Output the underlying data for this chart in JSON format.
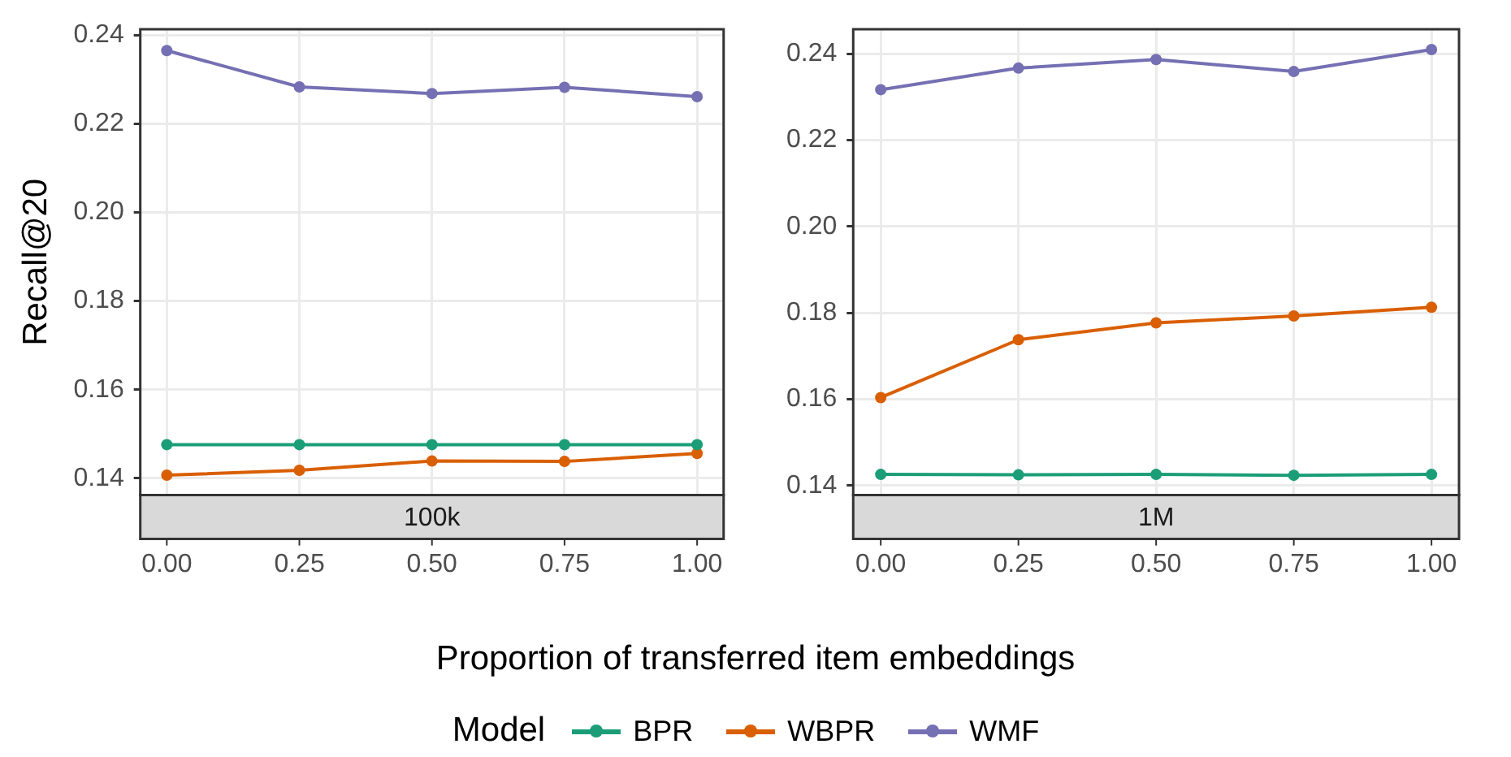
{
  "chart_data": [
    {
      "type": "line",
      "title": "100k",
      "xlabel": "Proportion of transferred item embeddings",
      "ylabel": "Recall@20",
      "legend": "bottom",
      "legend_title": "Model",
      "marker": "circle",
      "grid": true,
      "x": [
        0,
        0.25,
        0.5,
        0.75,
        1
      ],
      "xlim": [
        -0.05,
        1.05
      ],
      "xticks": [
        {
          "value": 0,
          "label": "0.00"
        },
        {
          "value": 0.25,
          "label": "0.25"
        },
        {
          "value": 0.5,
          "label": "0.50"
        },
        {
          "value": 0.75,
          "label": "0.75"
        },
        {
          "value": 1,
          "label": "1.00"
        }
      ],
      "ylim": [
        0.1362,
        0.2413
      ],
      "yticks": [
        0.14,
        0.16,
        0.18,
        {
          "value": 0.2,
          "label": "0.20"
        },
        0.22,
        0.24
      ],
      "series": [
        {
          "name": "BPR",
          "color": "#1b9e77",
          "values": [
            0.1476,
            0.1476,
            0.1476,
            0.1476,
            0.1476
          ]
        },
        {
          "name": "WBPR",
          "color": "#d95f02",
          "values": [
            0.1407,
            0.1418,
            0.1439,
            0.1438,
            0.1456
          ]
        },
        {
          "name": "WMF",
          "color": "#7570b3",
          "values": [
            0.2365,
            0.2283,
            0.2268,
            0.2282,
            0.2261
          ]
        }
      ]
    },
    {
      "type": "line",
      "title": "1M",
      "marker": "circle",
      "grid": true,
      "x": [
        0,
        0.25,
        0.5,
        0.75,
        1
      ],
      "xlim": [
        -0.05,
        1.05
      ],
      "xticks": [
        {
          "value": 0,
          "label": "0.00"
        },
        {
          "value": 0.25,
          "label": "0.25"
        },
        {
          "value": 0.5,
          "label": "0.50"
        },
        {
          "value": 0.75,
          "label": "0.75"
        },
        {
          "value": 1,
          "label": "1.00"
        }
      ],
      "ylim": [
        0.1378,
        0.2457
      ],
      "yticks": [
        0.14,
        0.16,
        0.18,
        {
          "value": 0.2,
          "label": "0.20"
        },
        0.22,
        0.24
      ],
      "series": [
        {
          "name": "BPR",
          "color": "#1b9e77",
          "values": [
            0.1426,
            0.1425,
            0.1426,
            0.1424,
            0.1426
          ]
        },
        {
          "name": "WBPR",
          "color": "#d95f02",
          "values": [
            0.1604,
            0.1738,
            0.1777,
            0.1793,
            0.1813
          ]
        },
        {
          "name": "WMF",
          "color": "#7570b3",
          "values": [
            0.2317,
            0.2367,
            0.2387,
            0.2359,
            0.241
          ]
        }
      ]
    }
  ]
}
